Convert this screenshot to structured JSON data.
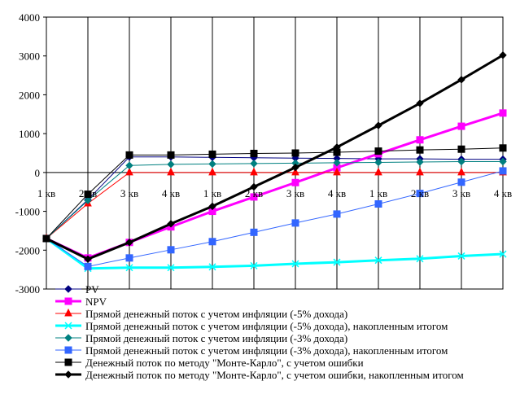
{
  "chart_data": {
    "type": "line",
    "title": "",
    "xlabel": "",
    "ylabel": "",
    "categories": [
      "1 кв",
      "2 кв",
      "3 кв",
      "4 кв",
      "1 кв",
      "2 кв",
      "3 кв",
      "4 кв",
      "1 кв",
      "2 кв",
      "3 кв",
      "4 кв"
    ],
    "ylim": [
      -3000,
      4000
    ],
    "yticks": [
      4000,
      3000,
      2000,
      1000,
      0,
      -1000,
      -2000,
      -3000
    ],
    "grid": "vertical",
    "legend_position": "bottom",
    "series": [
      {
        "name": "PV",
        "color": "#000080",
        "marker": "diamond",
        "line_width": 1,
        "values": [
          -1700,
          -700,
          400,
          400,
          390,
          380,
          370,
          360,
          350,
          350,
          340,
          340
        ]
      },
      {
        "name": "NPV",
        "color": "#ff00ff",
        "marker": "square",
        "line_width": 3,
        "values": [
          -1700,
          -2200,
          -1800,
          -1400,
          -1000,
          -630,
          -260,
          120,
          480,
          840,
          1190,
          1530
        ]
      },
      {
        "name": "Прямой денежный поток с учетом инфляции (-5% дохода)",
        "color": "#ff0000",
        "marker": "triangle",
        "line_width": 1,
        "values": [
          -1700,
          -800,
          0,
          0,
          0,
          0,
          0,
          0,
          0,
          0,
          0,
          0
        ]
      },
      {
        "name": "Прямой денежный поток с учетом инфляции (-5% дохода), накопленным итогом",
        "color": "#00ffff",
        "marker": "x",
        "line_width": 3,
        "values": [
          -1700,
          -2470,
          -2450,
          -2450,
          -2430,
          -2400,
          -2350,
          -2310,
          -2260,
          -2220,
          -2150,
          -2100
        ]
      },
      {
        "name": "Прямой денежный поток с учетом инфляции (-3% дохода)",
        "color": "#008080",
        "marker": "diamond",
        "line_width": 1,
        "values": [
          -1700,
          -720,
          180,
          210,
          220,
          230,
          240,
          250,
          260,
          270,
          280,
          280
        ]
      },
      {
        "name": "Прямой денежный поток с учетом инфляции (-3% дохода), накопленным итогом",
        "color": "#3366ff",
        "marker": "square",
        "line_width": 1,
        "values": [
          -1700,
          -2420,
          -2200,
          -1990,
          -1780,
          -1540,
          -1300,
          -1070,
          -810,
          -540,
          -250,
          40
        ]
      },
      {
        "name": "Денежный поток по методу \"Монте-Карло\", с учетом ошибки",
        "color": "#000000",
        "marker": "square",
        "line_width": 1,
        "values": [
          -1700,
          -560,
          450,
          450,
          470,
          490,
          500,
          520,
          550,
          580,
          600,
          630
        ]
      },
      {
        "name": "Денежный поток по методу \"Монте-Карло\", с учетом ошибки, накопленным итогом",
        "color": "#000000",
        "marker": "diamond",
        "line_width": 3,
        "values": [
          -1700,
          -2230,
          -1800,
          -1320,
          -870,
          -370,
          130,
          650,
          1210,
          1780,
          2390,
          3020
        ]
      }
    ]
  }
}
